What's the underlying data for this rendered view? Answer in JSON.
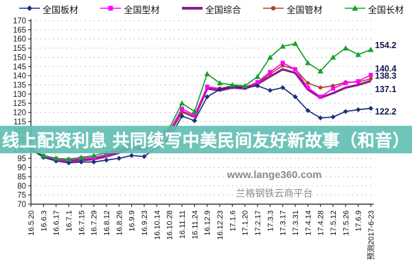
{
  "legend": {
    "items": [
      {
        "label": "全国板材",
        "marker": "diamond",
        "color": "#1c2f7d"
      },
      {
        "label": "全国型材",
        "marker": "square",
        "color": "#ff00ff"
      },
      {
        "label": "全国综合",
        "marker": "line",
        "color": "#8c1d8c"
      },
      {
        "label": "全国管材",
        "marker": "circle",
        "color": "#a8432c"
      },
      {
        "label": "全国长材",
        "marker": "triangle",
        "color": "#15a02a"
      }
    ]
  },
  "chart_data": {
    "type": "line",
    "title": "",
    "xlabel": "",
    "ylabel": "",
    "ylim": [
      70,
      170
    ],
    "ytick_step": 5,
    "grid": true,
    "legend_position": "top",
    "categories": [
      "16.5.20",
      "16.6.3",
      "16.6.17",
      "16.7.1",
      "16.7.15",
      "16.7.29",
      "16.8.12",
      "16.8.26",
      "16.9.9",
      "16.9.23",
      "16.10.14",
      "16.10.28",
      "16.11.11",
      "16.11.24",
      "16.12.9",
      "16.12.23",
      "17.1.6",
      "17.1.20",
      "17.2.17",
      "17.3.3",
      "17.3.17",
      "17.3.31",
      "17.4.14",
      "17.4.28",
      "17.5.12",
      "17.5.26",
      "17.6.9",
      "预测2017-6-23"
    ],
    "series": [
      {
        "name": "全国板材",
        "color": "#1c2f7d",
        "marker": "diamond",
        "end_label": "122.2",
        "values": [
          100,
          95.5,
          93.5,
          92.5,
          93,
          93,
          94,
          95,
          96.5,
          96,
          101,
          105.5,
          118,
          115.5,
          128.5,
          132.5,
          134,
          133.5,
          134.5,
          132,
          133.5,
          128.5,
          121,
          117,
          117.5,
          120.5,
          121.5,
          122.2
        ]
      },
      {
        "name": "全国型材",
        "color": "#ff00ff",
        "marker": "square",
        "end_label": "140.4",
        "values": [
          100,
          96,
          94.5,
          94,
          95,
          95.5,
          97,
          99.5,
          103.5,
          101,
          106,
          110,
          122,
          118.5,
          134,
          132.5,
          134,
          133.5,
          136.5,
          142,
          147,
          143.5,
          133.5,
          128.5,
          133,
          136,
          137,
          140.4
        ]
      },
      {
        "name": "全国综合",
        "color": "#8c1d8c",
        "marker": "none",
        "end_label": "137.1",
        "values": [
          100,
          96,
          94.5,
          93.5,
          94,
          94.5,
          96,
          98,
          101,
          99.5,
          104.5,
          108.5,
          120.5,
          117.5,
          133,
          132,
          133.5,
          133,
          135.5,
          139.5,
          143.5,
          141.5,
          132.5,
          128,
          130.5,
          133.5,
          135,
          137.1
        ]
      },
      {
        "name": "全国管材",
        "color": "#a8432c",
        "marker": "circle",
        "end_label": "138.3",
        "values": [
          100,
          96.5,
          95,
          94.5,
          95,
          95.5,
          97,
          99,
          102,
          100.5,
          105,
          109,
          120,
          118,
          134,
          133,
          134.5,
          134,
          136,
          141,
          145.5,
          143.5,
          136,
          133.5,
          134.5,
          136.5,
          136.5,
          138.3
        ]
      },
      {
        "name": "全国长材",
        "color": "#15a02a",
        "marker": "triangle",
        "end_label": "154.2",
        "values": [
          100,
          96.5,
          95,
          94.5,
          95.5,
          96.5,
          98,
          100,
          103,
          101.5,
          107,
          111.5,
          125,
          120.5,
          141,
          136,
          135,
          134.5,
          139.5,
          150,
          156,
          157.5,
          147,
          142.5,
          150,
          155,
          151.5,
          154.2
        ]
      }
    ]
  },
  "overlay": {
    "text": "线上配资利息 共同续写中美民间友好新故事（和音）",
    "background_color": "#5fbeb2",
    "text_color": "#ffffff"
  },
  "watermark": {
    "line1": "www.lange360.com",
    "line2": "兰格钢铁云商平台"
  }
}
